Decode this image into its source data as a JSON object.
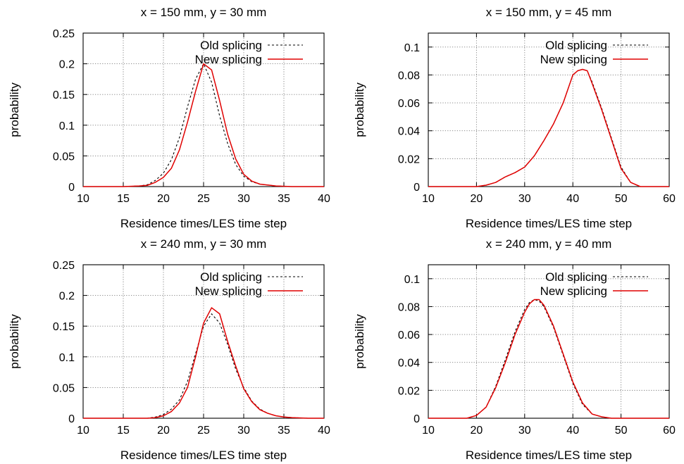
{
  "colors": {
    "old": "#000000",
    "new": "#e00000",
    "grid": "#7a7a7a",
    "axis": "#000000"
  },
  "chart_data": [
    {
      "type": "line",
      "title": "x = 150 mm, y = 30 mm",
      "xlabel": "Residence times/LES time step",
      "ylabel": "probability",
      "xlim": [
        10,
        40
      ],
      "ylim": [
        0,
        0.25
      ],
      "xticks": [
        10,
        15,
        20,
        25,
        30,
        35,
        40
      ],
      "yticks": [
        0,
        0.05,
        0.1,
        0.15,
        0.2,
        0.25
      ],
      "grid": true,
      "legend": "top-right",
      "series": [
        {
          "name": "Old splicing",
          "style": "dashed",
          "x": [
            10,
            15,
            17,
            18,
            19,
            20,
            21,
            22,
            23,
            24,
            25,
            26,
            27,
            28,
            29,
            30,
            31,
            32,
            34,
            36,
            40
          ],
          "y": [
            0,
            0,
            0.001,
            0.003,
            0.01,
            0.022,
            0.044,
            0.08,
            0.13,
            0.175,
            0.2,
            0.17,
            0.115,
            0.07,
            0.036,
            0.017,
            0.008,
            0.004,
            0.001,
            0,
            0
          ]
        },
        {
          "name": "New splicing",
          "style": "solid",
          "x": [
            10,
            15,
            17,
            18,
            19,
            20,
            21,
            22,
            23,
            24,
            25,
            26,
            27,
            28,
            29,
            30,
            31,
            32,
            34,
            36,
            40
          ],
          "y": [
            0,
            0,
            0.001,
            0.002,
            0.007,
            0.015,
            0.03,
            0.06,
            0.105,
            0.155,
            0.2,
            0.19,
            0.14,
            0.085,
            0.045,
            0.02,
            0.009,
            0.004,
            0.001,
            0,
            0
          ]
        }
      ]
    },
    {
      "type": "line",
      "title": "x = 150 mm, y = 45 mm",
      "xlabel": "Residence times/LES time step",
      "ylabel": "probability",
      "xlim": [
        10,
        60
      ],
      "ylim": [
        0,
        0.11
      ],
      "xticks": [
        10,
        20,
        30,
        40,
        50,
        60
      ],
      "yticks": [
        0,
        0.02,
        0.04,
        0.06,
        0.08,
        0.1
      ],
      "grid": true,
      "legend": "top-right",
      "series": [
        {
          "name": "Old splicing",
          "style": "dashed",
          "x": [
            10,
            20,
            22,
            24,
            26,
            28,
            30,
            32,
            34,
            36,
            38,
            40,
            41,
            42,
            43,
            44,
            46,
            48,
            50,
            52,
            54,
            60
          ],
          "y": [
            0,
            0,
            0.001,
            0.003,
            0.007,
            0.01,
            0.014,
            0.022,
            0.033,
            0.045,
            0.06,
            0.08,
            0.083,
            0.084,
            0.083,
            0.075,
            0.056,
            0.035,
            0.014,
            0.003,
            0,
            0
          ]
        },
        {
          "name": "New splicing",
          "style": "solid",
          "x": [
            10,
            20,
            22,
            24,
            26,
            28,
            30,
            32,
            34,
            36,
            38,
            40,
            41,
            42,
            43,
            44,
            46,
            48,
            50,
            52,
            54,
            60
          ],
          "y": [
            0,
            0,
            0.001,
            0.003,
            0.007,
            0.01,
            0.014,
            0.022,
            0.033,
            0.045,
            0.06,
            0.08,
            0.083,
            0.084,
            0.083,
            0.074,
            0.055,
            0.034,
            0.013,
            0.003,
            0,
            0
          ]
        }
      ]
    },
    {
      "type": "line",
      "title": "x = 240 mm, y = 30 mm",
      "xlabel": "Residence times/LES time step",
      "ylabel": "probability",
      "xlim": [
        10,
        40
      ],
      "ylim": [
        0,
        0.25
      ],
      "xticks": [
        10,
        15,
        20,
        25,
        30,
        35,
        40
      ],
      "yticks": [
        0,
        0.05,
        0.1,
        0.15,
        0.2,
        0.25
      ],
      "grid": true,
      "legend": "top-right",
      "series": [
        {
          "name": "Old splicing",
          "style": "dashed",
          "x": [
            10,
            18,
            19,
            20,
            21,
            22,
            23,
            24,
            25,
            26,
            27,
            28,
            29,
            30,
            31,
            32,
            33,
            34,
            35,
            36,
            38,
            40
          ],
          "y": [
            0,
            0,
            0.002,
            0.006,
            0.015,
            0.03,
            0.06,
            0.105,
            0.15,
            0.17,
            0.155,
            0.12,
            0.08,
            0.05,
            0.028,
            0.015,
            0.008,
            0.004,
            0.002,
            0.001,
            0,
            0
          ]
        },
        {
          "name": "New splicing",
          "style": "solid",
          "x": [
            10,
            18,
            19,
            20,
            21,
            22,
            23,
            24,
            25,
            26,
            27,
            28,
            29,
            30,
            31,
            32,
            33,
            34,
            35,
            36,
            38,
            40
          ],
          "y": [
            0,
            0,
            0.001,
            0.004,
            0.011,
            0.025,
            0.05,
            0.1,
            0.155,
            0.18,
            0.17,
            0.125,
            0.085,
            0.048,
            0.027,
            0.014,
            0.008,
            0.004,
            0.002,
            0.001,
            0,
            0
          ]
        }
      ]
    },
    {
      "type": "line",
      "title": "x = 240 mm, y = 40 mm",
      "xlabel": "Residence times/LES time step",
      "ylabel": "probability",
      "xlim": [
        10,
        60
      ],
      "ylim": [
        0,
        0.11
      ],
      "xticks": [
        10,
        20,
        30,
        40,
        50,
        60
      ],
      "yticks": [
        0,
        0.02,
        0.04,
        0.06,
        0.08,
        0.1
      ],
      "grid": true,
      "legend": "top-right",
      "series": [
        {
          "name": "Old splicing",
          "style": "dashed",
          "x": [
            10,
            18,
            20,
            22,
            24,
            26,
            28,
            30,
            31,
            32,
            33,
            34,
            36,
            38,
            40,
            42,
            44,
            46,
            48,
            50,
            60
          ],
          "y": [
            0,
            0,
            0.002,
            0.008,
            0.023,
            0.042,
            0.062,
            0.078,
            0.083,
            0.085,
            0.084,
            0.08,
            0.065,
            0.045,
            0.025,
            0.01,
            0.003,
            0.001,
            0,
            0,
            0
          ]
        },
        {
          "name": "New splicing",
          "style": "solid",
          "x": [
            10,
            18,
            20,
            22,
            24,
            26,
            28,
            30,
            31,
            32,
            33,
            34,
            36,
            38,
            40,
            42,
            44,
            46,
            48,
            50,
            60
          ],
          "y": [
            0,
            0,
            0.002,
            0.008,
            0.022,
            0.04,
            0.06,
            0.076,
            0.082,
            0.085,
            0.085,
            0.081,
            0.066,
            0.046,
            0.026,
            0.011,
            0.003,
            0.001,
            0,
            0,
            0
          ]
        }
      ]
    }
  ]
}
